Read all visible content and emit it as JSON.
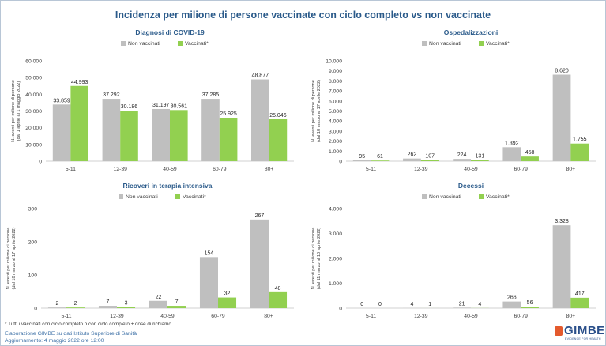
{
  "title": "Incidenza per milione di persone vaccinate con ciclo completo vs non vaccinate",
  "footnote": "* Tutti i vaccinati con ciclo completo o con ciclo completo + dose di richiamo",
  "credits": {
    "line1": "Elaborazione GIMBE su dati Istituto Superiore di Sanità",
    "line2": "Aggiornamento: 4 maggio 2022 ore 12:00"
  },
  "logo": {
    "word": "GIMBE",
    "tagline": "EVIDENCE FOR HEALTH"
  },
  "colors": {
    "non_vaccinati": "#bfbfbf",
    "vaccinati": "#92d050",
    "title": "#2a5a8a"
  },
  "chart_data": [
    {
      "type": "bar",
      "title": "Diagnosi di COVID-19",
      "ylabel": "N. eventi per milione di persone (dal 1 aprile al 1 maggio 2022)",
      "ylim": [
        0,
        60000
      ],
      "yticks": [
        "0",
        "10.000",
        "20.000",
        "30.000",
        "40.000",
        "50.000",
        "60.000"
      ],
      "categories": [
        "5-11",
        "12-39",
        "40-59",
        "60-79",
        "80+"
      ],
      "series": [
        {
          "name": "Non vaccinati",
          "values": [
            33859,
            37292,
            31197,
            37285,
            48877
          ],
          "labels": [
            "33.859",
            "37.292",
            "31.197",
            "37.285",
            "48.877"
          ]
        },
        {
          "name": "Vaccinati*",
          "values": [
            44993,
            30186,
            30561,
            25925,
            25046
          ],
          "labels": [
            "44.993",
            "30.186",
            "30.561",
            "25.925",
            "25.046"
          ]
        }
      ]
    },
    {
      "type": "bar",
      "title": "Ospedalizzazioni",
      "ylabel": "N. eventi per milione di persone (dal 18 marzo al 17 aprile 2022)",
      "ylim": [
        0,
        10000
      ],
      "yticks": [
        "0",
        "1.000",
        "2.000",
        "3.000",
        "4.000",
        "5.000",
        "6.000",
        "7.000",
        "8.000",
        "9.000",
        "10.000"
      ],
      "categories": [
        "5-11",
        "12-39",
        "40-59",
        "60-79",
        "80+"
      ],
      "series": [
        {
          "name": "Non vaccinati",
          "values": [
            95,
            262,
            224,
            1392,
            8620
          ],
          "labels": [
            "95",
            "262",
            "224",
            "1.392",
            "8.620"
          ]
        },
        {
          "name": "Vaccinati*",
          "values": [
            61,
            107,
            131,
            458,
            1755
          ],
          "labels": [
            "61",
            "107",
            "131",
            "458",
            "1.755"
          ]
        }
      ]
    },
    {
      "type": "bar",
      "title": "Ricoveri in terapia intensiva",
      "ylabel": "N. eventi per milione di persone (dal 18 marzo al 17 aprile 2022)",
      "ylim": [
        0,
        300
      ],
      "yticks": [
        "0",
        "100",
        "200",
        "300"
      ],
      "categories": [
        "5-11",
        "12-39",
        "40-59",
        "60-79",
        "80+"
      ],
      "series": [
        {
          "name": "Non vaccinati",
          "values": [
            2,
            7,
            22,
            154,
            267
          ],
          "labels": [
            "2",
            "7",
            "22",
            "154",
            "267"
          ]
        },
        {
          "name": "Vaccinati*",
          "values": [
            2,
            3,
            7,
            32,
            48
          ],
          "labels": [
            "2",
            "3",
            "7",
            "32",
            "48"
          ]
        }
      ]
    },
    {
      "type": "bar",
      "title": "Decessi",
      "ylabel": "N. eventi per milione di persone (dal 11 marzo al 10 aprile 2022)",
      "ylim": [
        0,
        4000
      ],
      "yticks": [
        "0",
        "1.000",
        "2.000",
        "3.000",
        "4.000"
      ],
      "categories": [
        "5-11",
        "12-39",
        "40-59",
        "60-79",
        "80+"
      ],
      "series": [
        {
          "name": "Non vaccinati",
          "values": [
            0,
            4,
            21,
            266,
            3328
          ],
          "labels": [
            "0",
            "4",
            "21",
            "266",
            "3.328"
          ]
        },
        {
          "name": "Vaccinati*",
          "values": [
            0,
            1,
            4,
            56,
            417
          ],
          "labels": [
            "0",
            "1",
            "4",
            "56",
            "417"
          ]
        }
      ]
    }
  ]
}
